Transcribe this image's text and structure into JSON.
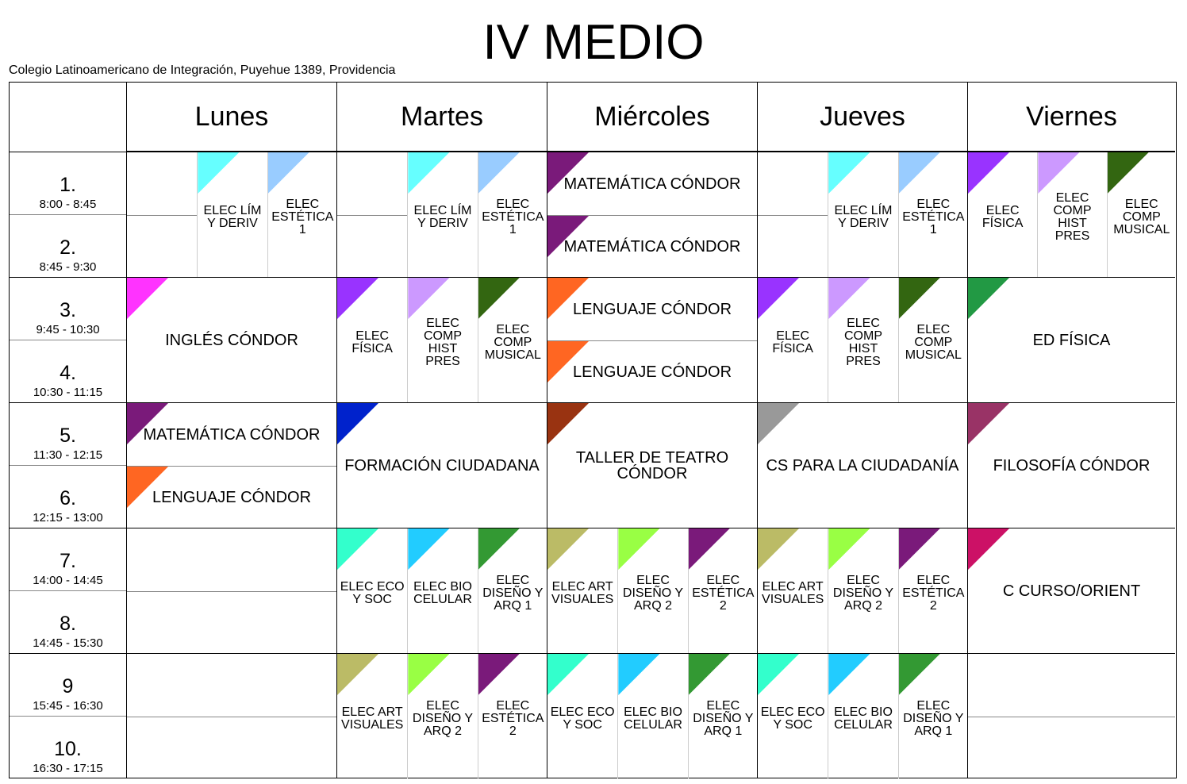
{
  "header": {
    "title": "IV MEDIO",
    "subtitle": "Colegio Latinoamericano de Integración, Puyehue 1389, Providencia"
  },
  "periods": [
    {
      "number": "1.",
      "time": "8:00 - 8:45"
    },
    {
      "number": "2.",
      "time": "8:45 - 9:30"
    },
    {
      "number": "3.",
      "time": "9:45 - 10:30"
    },
    {
      "number": "4.",
      "time": "10:30 - 11:15"
    },
    {
      "number": "5.",
      "time": "11:30 - 12:15"
    },
    {
      "number": "6.",
      "time": "12:15 - 13:00"
    },
    {
      "number": "7.",
      "time": "14:00 - 14:45"
    },
    {
      "number": "8.",
      "time": "14:45 - 15:30"
    },
    {
      "number": "9",
      "time": "15:45 - 16:30"
    },
    {
      "number": "10.",
      "time": "16:30 - 17:15"
    }
  ],
  "days": [
    {
      "name": "Lunes",
      "slots": [
        {
          "columns": [
            null,
            {
              "label": "ELEC LÍM Y DERIV",
              "color": "#66ffff"
            },
            {
              "label": "ELEC ESTÉTICA 1",
              "color": "#99ccff"
            }
          ]
        },
        {
          "single": {
            "label": "INGLÉS CÓNDOR",
            "color": "#ff33ff"
          }
        },
        {
          "rows": [
            {
              "label": "MATEMÁTICA CÓNDOR",
              "color": "#7a1a7a"
            },
            {
              "label": "LENGUAJE CÓNDOR",
              "color": "#ff6622"
            }
          ]
        },
        {
          "rows": [
            null,
            null
          ]
        },
        {
          "rows": [
            null,
            null
          ]
        }
      ]
    },
    {
      "name": "Martes",
      "slots": [
        {
          "columns": [
            null,
            {
              "label": "ELEC LÍM Y DERIV",
              "color": "#66ffff"
            },
            {
              "label": "ELEC ESTÉTICA 1",
              "color": "#99ccff"
            }
          ]
        },
        {
          "columns": [
            {
              "label": "ELEC FÍSICA",
              "color": "#9933ff"
            },
            {
              "label": "ELEC COMP HIST PRES",
              "color": "#cc99ff"
            },
            {
              "label": "ELEC COMP MUSICAL",
              "color": "#336611"
            }
          ]
        },
        {
          "single": {
            "label": "FORMACIÓN CIUDADANA",
            "color": "#0022cc"
          }
        },
        {
          "columns": [
            {
              "label": "ELEC ECO Y SOC",
              "color": "#33ffcc"
            },
            {
              "label": "ELEC BIO CELULAR",
              "color": "#22ccff"
            },
            {
              "label": "ELEC DISEÑO Y ARQ 1",
              "color": "#339933"
            }
          ]
        },
        {
          "columns": [
            {
              "label": "ELEC ART VISUALES",
              "color": "#bbbb66"
            },
            {
              "label": "ELEC DISEÑO Y ARQ 2",
              "color": "#99ff44"
            },
            {
              "label": "ELEC ESTÉTICA 2",
              "color": "#7a1a7a"
            }
          ]
        }
      ]
    },
    {
      "name": "Miércoles",
      "slots": [
        {
          "rows": [
            {
              "label": "MATEMÁTICA CÓNDOR",
              "color": "#7a1a7a"
            },
            {
              "label": "MATEMÁTICA CÓNDOR",
              "color": "#7a1a7a"
            }
          ]
        },
        {
          "rows": [
            {
              "label": "LENGUAJE CÓNDOR",
              "color": "#ff6622"
            },
            {
              "label": "LENGUAJE CÓNDOR",
              "color": "#ff6622"
            }
          ]
        },
        {
          "single": {
            "label": "TALLER DE TEATRO CÓNDOR",
            "color": "#993311"
          }
        },
        {
          "columns": [
            {
              "label": "ELEC ART VISUALES",
              "color": "#bbbb66"
            },
            {
              "label": "ELEC DISEÑO Y ARQ 2",
              "color": "#99ff44"
            },
            {
              "label": "ELEC ESTÉTICA 2",
              "color": "#7a1a7a"
            }
          ]
        },
        {
          "columns": [
            {
              "label": "ELEC ECO Y SOC",
              "color": "#33ffcc"
            },
            {
              "label": "ELEC BIO CELULAR",
              "color": "#22ccff"
            },
            {
              "label": "ELEC DISEÑO Y ARQ 1",
              "color": "#339933"
            }
          ]
        }
      ]
    },
    {
      "name": "Jueves",
      "slots": [
        {
          "columns": [
            null,
            {
              "label": "ELEC LÍM Y DERIV",
              "color": "#66ffff"
            },
            {
              "label": "ELEC ESTÉTICA 1",
              "color": "#99ccff"
            }
          ]
        },
        {
          "columns": [
            {
              "label": "ELEC FÍSICA",
              "color": "#9933ff"
            },
            {
              "label": "ELEC COMP HIST PRES",
              "color": "#cc99ff"
            },
            {
              "label": "ELEC COMP MUSICAL",
              "color": "#336611"
            }
          ]
        },
        {
          "single": {
            "label": "CS PARA LA CIUDADANÍA",
            "color": "#999999"
          }
        },
        {
          "columns": [
            {
              "label": "ELEC ART VISUALES",
              "color": "#bbbb66"
            },
            {
              "label": "ELEC DISEÑO Y ARQ 2",
              "color": "#99ff44"
            },
            {
              "label": "ELEC ESTÉTICA 2",
              "color": "#7a1a7a"
            }
          ]
        },
        {
          "columns": [
            {
              "label": "ELEC ECO Y SOC",
              "color": "#33ffcc"
            },
            {
              "label": "ELEC BIO CELULAR",
              "color": "#22ccff"
            },
            {
              "label": "ELEC DISEÑO Y ARQ 1",
              "color": "#339933"
            }
          ]
        }
      ]
    },
    {
      "name": "Viernes",
      "slots": [
        {
          "columns": [
            {
              "label": "ELEC FÍSICA",
              "color": "#9933ff"
            },
            {
              "label": "ELEC COMP HIST PRES",
              "color": "#cc99ff"
            },
            {
              "label": "ELEC COMP MUSICAL",
              "color": "#336611"
            }
          ]
        },
        {
          "single": {
            "label": "ED FÍSICA",
            "color": "#229944"
          }
        },
        {
          "single": {
            "label": "FILOSOFÍA CÓNDOR",
            "color": "#993366"
          }
        },
        {
          "single": {
            "label": "C CURSO/ORIENT",
            "color": "#cc1166"
          }
        },
        {
          "rows": [
            null,
            null
          ]
        }
      ]
    }
  ]
}
